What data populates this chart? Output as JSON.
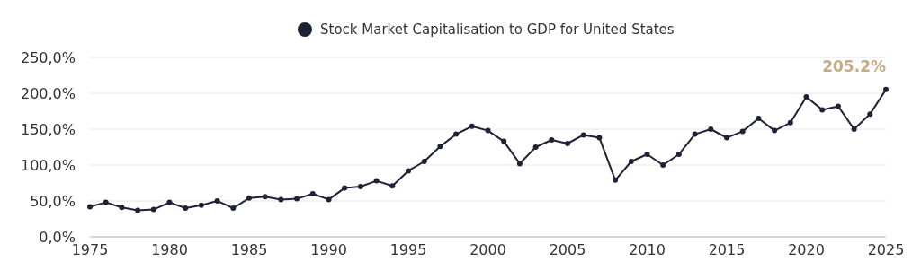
{
  "chart_data": {
    "type": "line",
    "x": [
      1975,
      1976,
      1977,
      1978,
      1979,
      1980,
      1981,
      1982,
      1983,
      1984,
      1985,
      1986,
      1987,
      1988,
      1989,
      1990,
      1991,
      1992,
      1993,
      1994,
      1995,
      1996,
      1997,
      1998,
      1999,
      2000,
      2001,
      2002,
      2003,
      2004,
      2005,
      2006,
      2007,
      2008,
      2009,
      2010,
      2011,
      2012,
      2013,
      2014,
      2015,
      2016,
      2017,
      2018,
      2019,
      2020,
      2021,
      2022,
      2023,
      2024,
      2025
    ],
    "series": [
      {
        "name": "Stock Market Capitalisation to GDP for United States",
        "color": "#1e2235",
        "values": [
          42,
          48,
          41,
          37,
          38,
          48,
          40,
          44,
          50,
          40,
          54,
          56,
          52,
          53,
          60,
          52,
          68,
          70,
          78,
          71,
          92,
          105,
          126,
          143,
          154,
          148,
          133,
          102,
          125,
          135,
          130,
          142,
          138,
          79,
          105,
          115,
          100,
          115,
          143,
          150,
          138,
          147,
          165,
          148,
          159,
          195,
          177,
          182,
          150,
          171,
          205.2
        ]
      }
    ],
    "xlim": [
      1975,
      2025
    ],
    "xticks": [
      1975,
      1980,
      1985,
      1990,
      1995,
      2000,
      2005,
      2010,
      2015,
      2020,
      2025
    ],
    "ylim": [
      0,
      250
    ],
    "yticks": [
      {
        "value": 0,
        "label": "0,0%"
      },
      {
        "value": 50,
        "label": "50,0%"
      },
      {
        "value": 100,
        "label": "100,0%"
      },
      {
        "value": 150,
        "label": "150,0%"
      },
      {
        "value": 200,
        "label": "200,0%"
      },
      {
        "value": 250,
        "label": "250,0%"
      }
    ],
    "annotations": [
      {
        "text": "205.2%",
        "x": 2025,
        "y": 205.2
      }
    ],
    "grid": "y",
    "legend": "top",
    "marker": "circle",
    "line_style": "solid"
  }
}
